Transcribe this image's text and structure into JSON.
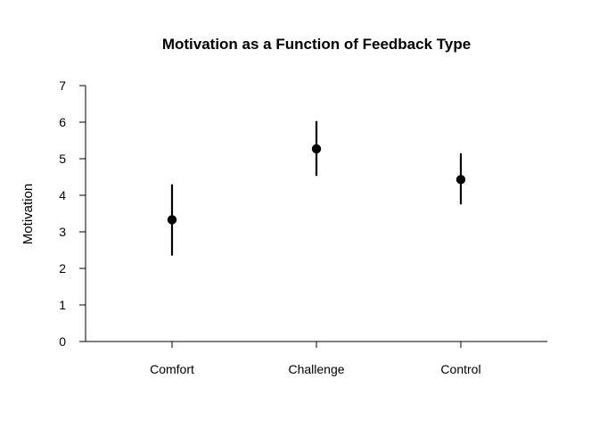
{
  "chart_data": {
    "type": "scatter",
    "title": "Motivation as a Function of Feedback Type",
    "xlabel": "",
    "ylabel": "Motivation",
    "categories": [
      "Comfort",
      "Challenge",
      "Control"
    ],
    "values": [
      3.33,
      5.27,
      4.43
    ],
    "error_low": [
      2.35,
      4.53,
      3.75
    ],
    "error_high": [
      4.3,
      6.03,
      5.15
    ],
    "ylim": [
      0,
      7
    ],
    "yticks": [
      0,
      1,
      2,
      3,
      4,
      5,
      6,
      7
    ],
    "grid": false,
    "legend": "none",
    "colors": {
      "point": "#000000",
      "axis": "#000000"
    }
  }
}
